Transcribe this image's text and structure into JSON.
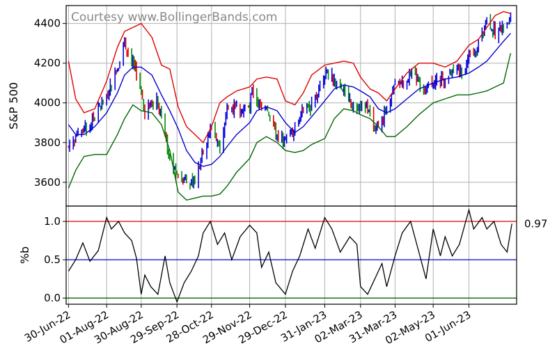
{
  "chart_data": [
    {
      "type": "line",
      "panel": "price",
      "annotation": "Courtesy www.BollingerBands.com",
      "ylabel": "S&P 500",
      "ylim": [
        3480,
        4490
      ],
      "yticks": [
        3600,
        3800,
        4000,
        4200,
        4400
      ],
      "grid": true,
      "x_dates": [
        "30-Jun-22",
        "01-Aug-22",
        "30-Aug-22",
        "29-Sep-22",
        "28-Oct-22",
        "29-Nov-22",
        "29-Dec-22",
        "31-Jan-23",
        "02-Mar-23",
        "31-Mar-23",
        "02-May-23",
        "01-Jun-23"
      ],
      "price_path": {
        "dates": [
          "30-Jun-22",
          "06-Jul-22",
          "15-Jul-22",
          "22-Jul-22",
          "01-Aug-22",
          "10-Aug-22",
          "16-Aug-22",
          "25-Aug-22",
          "02-Sep-22",
          "12-Sep-22",
          "16-Sep-22",
          "23-Sep-22",
          "30-Sep-22",
          "07-Oct-22",
          "12-Oct-22",
          "21-Oct-22",
          "28-Oct-22",
          "04-Nov-22",
          "10-Nov-22",
          "18-Nov-22",
          "29-Nov-22",
          "01-Dec-22",
          "09-Dec-22",
          "13-Dec-22",
          "22-Dec-22",
          "29-Dec-22",
          "05-Jan-23",
          "13-Jan-23",
          "20-Jan-23",
          "27-Jan-23",
          "02-Feb-23",
          "10-Feb-23",
          "17-Feb-23",
          "24-Feb-23",
          "02-Mar-23",
          "07-Mar-23",
          "13-Mar-23",
          "22-Mar-23",
          "31-Mar-23",
          "07-Apr-23",
          "14-Apr-23",
          "24-Apr-23",
          "02-May-23",
          "12-May-23",
          "19-May-23",
          "26-May-23",
          "01-Jun-23",
          "09-Jun-23",
          "16-Jun-23",
          "23-Jun-23",
          "30-Jun-23",
          "06-Jul-23"
        ],
        "values": [
          3780,
          3830,
          3870,
          3930,
          4030,
          4180,
          4290,
          4180,
          3960,
          4020,
          3930,
          3720,
          3630,
          3620,
          3580,
          3760,
          3880,
          3790,
          3960,
          3980,
          3970,
          4080,
          3960,
          3990,
          3820,
          3820,
          3850,
          3990,
          3980,
          4070,
          4150,
          4110,
          4070,
          3970,
          3980,
          4000,
          3860,
          3940,
          4080,
          4110,
          4150,
          4070,
          4110,
          4120,
          4150,
          4160,
          4230,
          4290,
          4430,
          4350,
          4380,
          4420
        ]
      },
      "series": [
        {
          "name": "",
          "color": "#dd0000",
          "role": "upper band",
          "dates": [
            "30-Jun-22",
            "06-Jul-22",
            "13-Jul-22",
            "22-Jul-22",
            "01-Aug-22",
            "10-Aug-22",
            "16-Aug-22",
            "23-Aug-22",
            "30-Aug-22",
            "08-Sep-22",
            "16-Sep-22",
            "23-Sep-22",
            "30-Sep-22",
            "07-Oct-22",
            "14-Oct-22",
            "21-Oct-22",
            "28-Oct-22",
            "04-Nov-22",
            "10-Nov-22",
            "18-Nov-22",
            "29-Nov-22",
            "05-Dec-22",
            "13-Dec-22",
            "22-Dec-22",
            "29-Dec-22",
            "06-Jan-23",
            "13-Jan-23",
            "20-Jan-23",
            "31-Jan-23",
            "08-Feb-23",
            "16-Feb-23",
            "24-Feb-23",
            "02-Mar-23",
            "10-Mar-23",
            "17-Mar-23",
            "24-Mar-23",
            "31-Mar-23",
            "10-Apr-23",
            "20-Apr-23",
            "02-May-23",
            "12-May-23",
            "22-May-23",
            "01-Jun-23",
            "09-Jun-23",
            "16-Jun-23",
            "23-Jun-23",
            "30-Jun-23",
            "06-Jul-23"
          ],
          "values": [
            4210,
            4020,
            3950,
            3970,
            4110,
            4280,
            4360,
            4380,
            4400,
            4330,
            4190,
            4170,
            3980,
            3880,
            3840,
            3800,
            3880,
            4000,
            4030,
            4060,
            4080,
            4120,
            4130,
            4120,
            4010,
            3990,
            4050,
            4140,
            4190,
            4200,
            4210,
            4200,
            4130,
            4070,
            4050,
            4010,
            4070,
            4150,
            4200,
            4200,
            4180,
            4210,
            4290,
            4320,
            4380,
            4440,
            4460,
            4450
          ]
        },
        {
          "name": "",
          "color": "#0000cc",
          "role": "middle band",
          "dates": [
            "30-Jun-22",
            "06-Jul-22",
            "13-Jul-22",
            "22-Jul-22",
            "01-Aug-22",
            "10-Aug-22",
            "16-Aug-22",
            "23-Aug-22",
            "30-Aug-22",
            "08-Sep-22",
            "16-Sep-22",
            "23-Sep-22",
            "30-Sep-22",
            "07-Oct-22",
            "14-Oct-22",
            "21-Oct-22",
            "28-Oct-22",
            "04-Nov-22",
            "10-Nov-22",
            "18-Nov-22",
            "29-Nov-22",
            "05-Dec-22",
            "13-Dec-22",
            "22-Dec-22",
            "29-Dec-22",
            "06-Jan-23",
            "13-Jan-23",
            "20-Jan-23",
            "31-Jan-23",
            "08-Feb-23",
            "16-Feb-23",
            "24-Feb-23",
            "02-Mar-23",
            "10-Mar-23",
            "17-Mar-23",
            "24-Mar-23",
            "31-Mar-23",
            "10-Apr-23",
            "20-Apr-23",
            "02-May-23",
            "12-May-23",
            "22-May-23",
            "01-Jun-23",
            "09-Jun-23",
            "16-Jun-23",
            "23-Jun-23",
            "30-Jun-23",
            "06-Jul-23"
          ],
          "values": [
            3890,
            3840,
            3840,
            3880,
            3950,
            4050,
            4140,
            4180,
            4180,
            4140,
            4040,
            3960,
            3870,
            3760,
            3700,
            3680,
            3690,
            3730,
            3780,
            3840,
            3900,
            3960,
            3980,
            3960,
            3900,
            3850,
            3880,
            3930,
            4010,
            4070,
            4090,
            4080,
            4060,
            4030,
            3970,
            3950,
            3970,
            4020,
            4070,
            4100,
            4120,
            4130,
            4150,
            4180,
            4210,
            4260,
            4310,
            4350
          ]
        },
        {
          "name": "",
          "color": "#006600",
          "role": "lower band",
          "dates": [
            "30-Jun-22",
            "06-Jul-22",
            "13-Jul-22",
            "22-Jul-22",
            "01-Aug-22",
            "10-Aug-22",
            "16-Aug-22",
            "23-Aug-22",
            "30-Aug-22",
            "08-Sep-22",
            "16-Sep-22",
            "23-Sep-22",
            "30-Sep-22",
            "07-Oct-22",
            "14-Oct-22",
            "21-Oct-22",
            "28-Oct-22",
            "04-Nov-22",
            "10-Nov-22",
            "18-Nov-22",
            "29-Nov-22",
            "05-Dec-22",
            "13-Dec-22",
            "22-Dec-22",
            "29-Dec-22",
            "06-Jan-23",
            "13-Jan-23",
            "20-Jan-23",
            "31-Jan-23",
            "08-Feb-23",
            "16-Feb-23",
            "24-Feb-23",
            "02-Mar-23",
            "10-Mar-23",
            "17-Mar-23",
            "24-Mar-23",
            "31-Mar-23",
            "10-Apr-23",
            "20-Apr-23",
            "02-May-23",
            "12-May-23",
            "22-May-23",
            "01-Jun-23",
            "09-Jun-23",
            "16-Jun-23",
            "23-Jun-23",
            "30-Jun-23",
            "06-Jul-23"
          ],
          "values": [
            3570,
            3660,
            3730,
            3740,
            3740,
            3840,
            3920,
            3990,
            3960,
            3950,
            3890,
            3760,
            3550,
            3510,
            3520,
            3530,
            3530,
            3540,
            3580,
            3650,
            3720,
            3800,
            3830,
            3800,
            3760,
            3750,
            3760,
            3790,
            3820,
            3920,
            3970,
            3960,
            3940,
            3920,
            3880,
            3830,
            3830,
            3880,
            3940,
            4000,
            4020,
            4040,
            4040,
            4050,
            4060,
            4080,
            4100,
            4250
          ]
        }
      ]
    },
    {
      "type": "line",
      "panel": "percent_b",
      "ylabel": "%b",
      "ylim": [
        -0.08,
        1.2
      ],
      "yticks": [
        0.0,
        0.5,
        1.0
      ],
      "yticklabels": [
        "0.0",
        "0.5",
        "1.0"
      ],
      "reference_lines": [
        {
          "value": 1.0,
          "color": "#dd0000"
        },
        {
          "value": 0.5,
          "color": "#0000cc"
        },
        {
          "value": 0.0,
          "color": "#006600"
        }
      ],
      "last_value_label": "0.97",
      "series": [
        {
          "name": "",
          "color": "#000000",
          "dates": [
            "30-Jun-22",
            "06-Jul-22",
            "12-Jul-22",
            "18-Jul-22",
            "25-Jul-22",
            "01-Aug-22",
            "05-Aug-22",
            "11-Aug-22",
            "16-Aug-22",
            "22-Aug-22",
            "26-Aug-22",
            "30-Aug-22",
            "02-Sep-22",
            "07-Sep-22",
            "13-Sep-22",
            "19-Sep-22",
            "23-Sep-22",
            "29-Sep-22",
            "05-Oct-22",
            "11-Oct-22",
            "17-Oct-22",
            "21-Oct-22",
            "27-Oct-22",
            "02-Nov-22",
            "08-Nov-22",
            "14-Nov-22",
            "21-Nov-22",
            "29-Nov-22",
            "05-Dec-22",
            "09-Dec-22",
            "15-Dec-22",
            "21-Dec-22",
            "29-Dec-22",
            "04-Jan-23",
            "10-Jan-23",
            "17-Jan-23",
            "23-Jan-23",
            "31-Jan-23",
            "06-Feb-23",
            "13-Feb-23",
            "21-Feb-23",
            "27-Feb-23",
            "02-Mar-23",
            "08-Mar-23",
            "14-Mar-23",
            "20-Mar-23",
            "24-Mar-23",
            "31-Mar-23",
            "06-Apr-23",
            "13-Apr-23",
            "20-Apr-23",
            "26-Apr-23",
            "02-May-23",
            "08-May-23",
            "12-May-23",
            "18-May-23",
            "24-May-23",
            "01-Jun-23",
            "05-Jun-23",
            "12-Jun-23",
            "16-Jun-23",
            "22-Jun-23",
            "28-Jun-23",
            "03-Jul-23",
            "07-Jul-23"
          ],
          "values": [
            0.35,
            0.5,
            0.72,
            0.48,
            0.62,
            1.05,
            0.9,
            1.0,
            0.85,
            0.75,
            0.52,
            0.05,
            0.3,
            0.15,
            0.05,
            0.55,
            0.2,
            -0.05,
            0.2,
            0.35,
            0.55,
            0.85,
            1.0,
            0.7,
            0.85,
            0.5,
            0.8,
            0.95,
            0.85,
            0.4,
            0.6,
            0.2,
            0.05,
            0.35,
            0.55,
            0.9,
            0.65,
            1.05,
            0.9,
            0.6,
            0.8,
            0.7,
            0.15,
            0.05,
            0.25,
            0.45,
            0.15,
            0.55,
            0.85,
            1.0,
            0.6,
            0.25,
            0.9,
            0.55,
            0.8,
            0.55,
            0.7,
            1.15,
            0.9,
            1.05,
            0.9,
            1.0,
            0.7,
            0.6,
            0.97
          ]
        }
      ]
    }
  ]
}
